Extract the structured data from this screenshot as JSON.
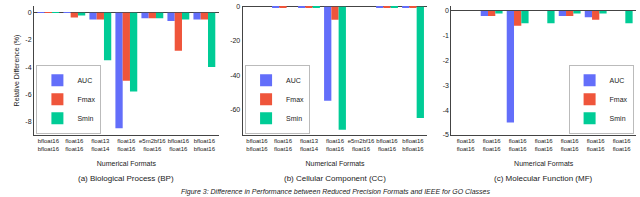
{
  "chart_data": [
    {
      "type": "bar",
      "title": "(a) Biological Process (BP)",
      "xlabel": "Numerical Formats",
      "ylabel": "Relative Difference (%)",
      "categories": [
        "bfloat16\nbfloat16",
        "float16\nfloat16",
        "float13\nfloat14",
        "float16\nfloat16",
        "e5m2bf16\nfloat16",
        "bfloat16\nfloat16",
        "bfloat16\nbfloat16"
      ],
      "series": [
        {
          "name": "AUC",
          "color": "#636efa",
          "values": [
            0.02,
            0.02,
            -0.5,
            -8.5,
            -0.4,
            -0.6,
            -0.5
          ]
        },
        {
          "name": "Fmax",
          "color": "#ef553b",
          "values": [
            0.02,
            -0.35,
            -0.5,
            -5.0,
            -0.4,
            -2.8,
            -0.5
          ]
        },
        {
          "name": "Smin",
          "color": "#00cc96",
          "values": [
            0.02,
            -0.2,
            -3.5,
            -5.8,
            -0.4,
            -0.5,
            -4.0
          ]
        }
      ],
      "ylim": [
        -9.0,
        0.5
      ],
      "yticks": [
        -8,
        -6,
        -4,
        -2,
        0
      ],
      "grid": false,
      "legend": "lower left",
      "annotations": [
        "Figure 3: Difference in Performance between Reduced Precision Formats and IEEE for GO Classes"
      ]
    },
    {
      "type": "bar",
      "title": "(b) Cellular Component (CC)",
      "xlabel": "Numerical Formats",
      "categories": [
        "bfloat16\nbfloat16",
        "float16\nfloat16",
        "float13\nfloat14",
        "float16\nfloat16",
        "e5m2bf16\nfloat16",
        "bfloat16\nfloat16",
        "bfloat16\nbfloat16"
      ],
      "series": [
        {
          "name": "AUC",
          "color": "#636efa",
          "values": [
            0.0,
            -0.15,
            -0.1,
            -55.0,
            0.0,
            -0.1,
            -0.3
          ]
        },
        {
          "name": "Fmax",
          "color": "#ef553b",
          "values": [
            0.0,
            -0.15,
            -0.15,
            -7.5,
            0.0,
            -0.15,
            -0.2
          ]
        },
        {
          "name": "Smin",
          "color": "#00cc96",
          "values": [
            0.0,
            0.0,
            -0.15,
            -72.0,
            0.0,
            -0.1,
            -65.0
          ]
        }
      ],
      "ylim": [
        -75,
        0.5
      ],
      "yticks": [
        -60,
        -40,
        -20,
        0
      ],
      "grid": false,
      "legend": "lower left"
    },
    {
      "type": "bar",
      "title": "(c) Molecular Function (MF)",
      "xlabel": "Numerical Formats",
      "categories": [
        "float16\nfloat16",
        "float16\nfloat16",
        "float16\nfloat16",
        "float16\nfloat16",
        "float16\nfloat16",
        "float16\nfloat16",
        "float16\nfloat16"
      ],
      "series": [
        {
          "name": "AUC",
          "color": "#636efa",
          "values": [
            0.0,
            -0.2,
            -4.5,
            0.0,
            -0.2,
            -0.25,
            0.0
          ]
        },
        {
          "name": "Fmax",
          "color": "#ef553b",
          "values": [
            0.0,
            -0.2,
            -0.6,
            0.0,
            -0.2,
            -0.35,
            0.0
          ]
        },
        {
          "name": "Smin",
          "color": "#00cc96",
          "values": [
            0.0,
            -0.1,
            -0.5,
            -0.5,
            -0.1,
            -0.1,
            -0.5
          ]
        }
      ],
      "ylim": [
        -5.0,
        0.2
      ],
      "yticks": [
        -5,
        -4,
        -3,
        -2,
        -1,
        0
      ],
      "grid": false,
      "legend": "lower right"
    }
  ]
}
